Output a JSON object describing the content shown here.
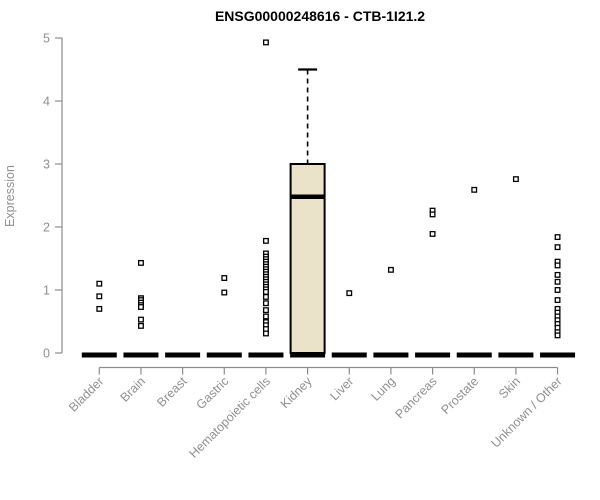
{
  "chart_data": {
    "type": "boxplot",
    "title": "ENSG00000248616 - CTB-1I21.2",
    "ylabel": "Expression",
    "xlabel": "",
    "ylim": [
      0,
      5
    ],
    "yticks": [
      0,
      1,
      2,
      3,
      4,
      5
    ],
    "grid": false,
    "legend": false,
    "marker": "open-square",
    "categories": [
      "Bladder",
      "Brain",
      "Breast",
      "Gastric",
      "Hematopoietic cells",
      "Kidney",
      "Liver",
      "Lung",
      "Pancreas",
      "Prostate",
      "Skin",
      "Unknown / Other"
    ],
    "groups": [
      {
        "category": "Bladder",
        "zero_bar": true,
        "points": [
          1.1,
          0.9,
          0.7
        ]
      },
      {
        "category": "Brain",
        "zero_bar": true,
        "points": [
          1.43,
          0.87,
          0.84,
          0.8,
          0.76,
          0.73,
          0.53,
          0.43
        ]
      },
      {
        "category": "Breast",
        "zero_bar": true,
        "points": []
      },
      {
        "category": "Gastric",
        "zero_bar": true,
        "points": [
          1.19,
          0.96
        ]
      },
      {
        "category": "Hematopoietic cells",
        "zero_bar": true,
        "points": [
          4.93,
          1.78,
          1.58,
          1.53,
          1.49,
          1.45,
          1.41,
          1.37,
          1.33,
          1.29,
          1.25,
          1.21,
          1.17,
          1.13,
          1.09,
          1.05,
          1.01,
          0.97,
          0.89,
          0.79,
          0.68,
          0.58,
          0.49,
          0.44,
          0.38,
          0.31
        ]
      },
      {
        "category": "Kidney",
        "zero_bar": true,
        "box": {
          "q1": 0,
          "median": 2.48,
          "q3": 3.0,
          "whisker_high": 4.5
        },
        "points": []
      },
      {
        "category": "Liver",
        "zero_bar": true,
        "points": [
          0.95
        ]
      },
      {
        "category": "Lung",
        "zero_bar": true,
        "points": [
          1.32
        ]
      },
      {
        "category": "Pancreas",
        "zero_bar": true,
        "points": [
          2.26,
          2.2,
          1.89
        ]
      },
      {
        "category": "Prostate",
        "zero_bar": true,
        "points": [
          2.59
        ]
      },
      {
        "category": "Skin",
        "zero_bar": true,
        "points": [
          2.76
        ]
      },
      {
        "category": "Unknown / Other",
        "zero_bar": true,
        "points": [
          1.84,
          1.68,
          1.45,
          1.39,
          1.24,
          1.13,
          1.0,
          0.84,
          0.7,
          0.64,
          0.58,
          0.52,
          0.46,
          0.4,
          0.33,
          0.28
        ]
      }
    ],
    "colors": {
      "axis": "#8c8c8c",
      "tick_label": "#8f8f8f",
      "title": "#000000",
      "box_fill": "#eae3ca",
      "box_border": "#000000",
      "point": "#000000",
      "background": "#ffffff"
    }
  }
}
